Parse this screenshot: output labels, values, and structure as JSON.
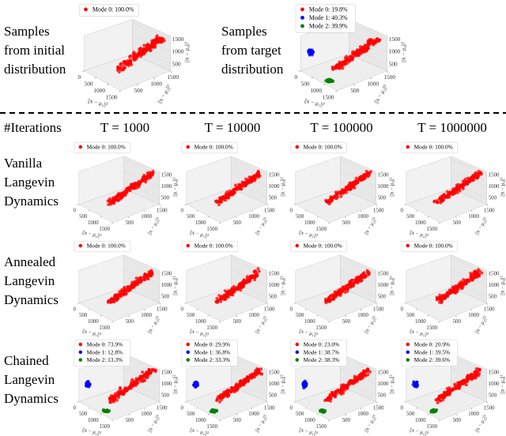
{
  "axes": {
    "xticks": [
      0,
      500,
      1000,
      1500
    ],
    "yticks": [
      500,
      1000,
      1500
    ],
    "zticks": [
      500,
      1000,
      1500
    ],
    "xlabel": "||x − μ₁||²",
    "ylabel": "||x − μ₂||²",
    "zlabel": "||x − μ₀||²"
  },
  "top": [
    {
      "label": [
        "Samples",
        "from initial",
        "distribution"
      ],
      "chart": {
        "type": "scatter3d",
        "series": [
          {
            "name": "Mode 0: 100.0%",
            "color": "#ff0000"
          }
        ]
      }
    },
    {
      "label": [
        "Samples",
        "from target",
        "distribution"
      ],
      "chart": {
        "type": "scatter3d",
        "series": [
          {
            "name": "Mode 0: 19.8%",
            "color": "#ff0000"
          },
          {
            "name": "Mode 1: 40.3%",
            "color": "#0000ff"
          },
          {
            "name": "Mode 2: 39.9%",
            "color": "#008000"
          }
        ]
      }
    }
  ],
  "header": "#Iterations",
  "columns": [
    "T = 1000",
    "T = 10000",
    "T = 100000",
    "T = 1000000"
  ],
  "rows": [
    {
      "label": [
        "Vanilla",
        "Langevin",
        "Dynamics"
      ],
      "panels": [
        {
          "type": "scatter3d",
          "series": [
            {
              "name": "Mode 0: 100.0%",
              "color": "#ff0000"
            }
          ]
        },
        {
          "type": "scatter3d",
          "series": [
            {
              "name": "Mode 0: 100.0%",
              "color": "#ff0000"
            }
          ]
        },
        {
          "type": "scatter3d",
          "series": [
            {
              "name": "Mode 0: 100.0%",
              "color": "#ff0000"
            }
          ]
        },
        {
          "type": "scatter3d",
          "series": [
            {
              "name": "Mode 0: 100.0%",
              "color": "#ff0000"
            }
          ]
        }
      ]
    },
    {
      "label": [
        "Annealed",
        "Langevin",
        "Dynamics"
      ],
      "panels": [
        {
          "type": "scatter3d",
          "series": [
            {
              "name": "Mode 0: 100.0%",
              "color": "#ff0000"
            }
          ]
        },
        {
          "type": "scatter3d",
          "series": [
            {
              "name": "Mode 0: 100.0%",
              "color": "#ff0000"
            }
          ]
        },
        {
          "type": "scatter3d",
          "series": [
            {
              "name": "Mode 0: 100.0%",
              "color": "#ff0000"
            }
          ]
        },
        {
          "type": "scatter3d",
          "series": [
            {
              "name": "Mode 0: 100.0%",
              "color": "#ff0000"
            }
          ]
        }
      ]
    },
    {
      "label": [
        "Chained",
        "Langevin",
        "Dynamics"
      ],
      "panels": [
        {
          "type": "scatter3d",
          "series": [
            {
              "name": "Mode 0: 73.9%",
              "color": "#ff0000"
            },
            {
              "name": "Mode 1: 12.8%",
              "color": "#0000ff"
            },
            {
              "name": "Mode 2: 13.3%",
              "color": "#008000"
            }
          ]
        },
        {
          "type": "scatter3d",
          "series": [
            {
              "name": "Mode 0: 29.9%",
              "color": "#ff0000"
            },
            {
              "name": "Mode 1: 36.8%",
              "color": "#0000ff"
            },
            {
              "name": "Mode 2: 33.3%",
              "color": "#008000"
            }
          ]
        },
        {
          "type": "scatter3d",
          "series": [
            {
              "name": "Mode 0: 23.0%",
              "color": "#ff0000"
            },
            {
              "name": "Mode 1: 38.7%",
              "color": "#0000ff"
            },
            {
              "name": "Mode 2: 38.3%",
              "color": "#008000"
            }
          ]
        },
        {
          "type": "scatter3d",
          "series": [
            {
              "name": "Mode 0: 20.9%",
              "color": "#ff0000"
            },
            {
              "name": "Mode 1: 39.5%",
              "color": "#0000ff"
            },
            {
              "name": "Mode 2: 39.6%",
              "color": "#008000"
            }
          ]
        }
      ]
    }
  ]
}
